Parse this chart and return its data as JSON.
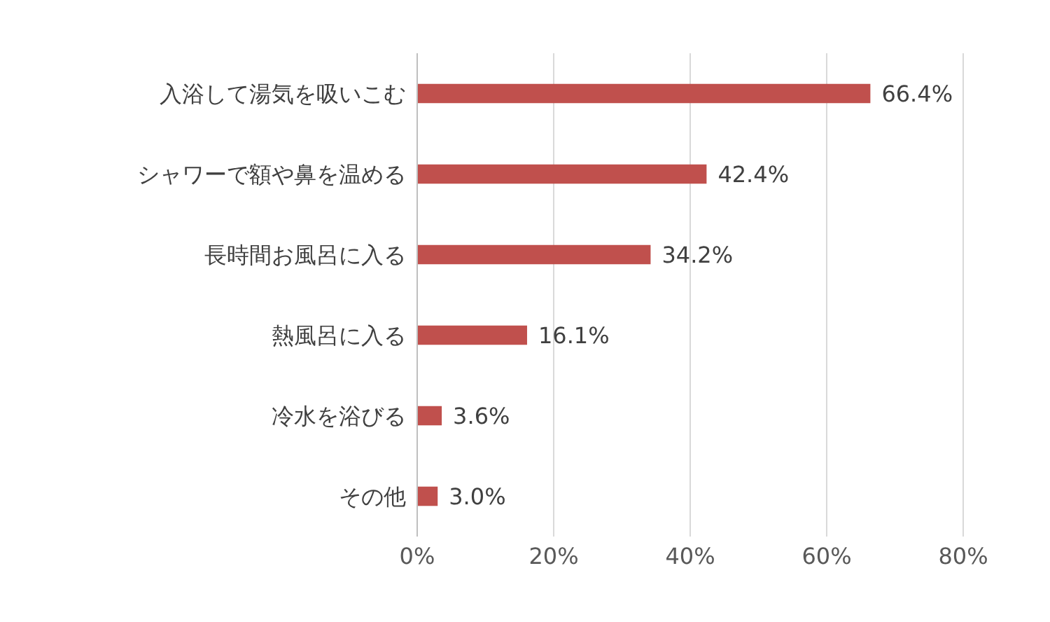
{
  "chart_data": {
    "type": "bar",
    "orientation": "horizontal",
    "categories": [
      "入浴して湯気を吸いこむ",
      "シャワーで額や鼻を温める",
      "長時間お風呂に入る",
      "熱風呂に入る",
      "冷水を浴びる",
      "その他"
    ],
    "values": [
      66.4,
      42.4,
      34.2,
      16.1,
      3.6,
      3.0
    ],
    "value_labels": [
      "66.4%",
      "42.4%",
      "34.2%",
      "16.1%",
      "3.6%",
      "3.0%"
    ],
    "color": "#c0504d",
    "xlim": [
      0,
      80
    ],
    "xticks": [
      {
        "value": 0,
        "label": "0%"
      },
      {
        "value": 20,
        "label": "20%"
      },
      {
        "value": 40,
        "label": "40%"
      },
      {
        "value": 60,
        "label": "60%"
      },
      {
        "value": 80,
        "label": "80%"
      }
    ],
    "grid": "x"
  }
}
